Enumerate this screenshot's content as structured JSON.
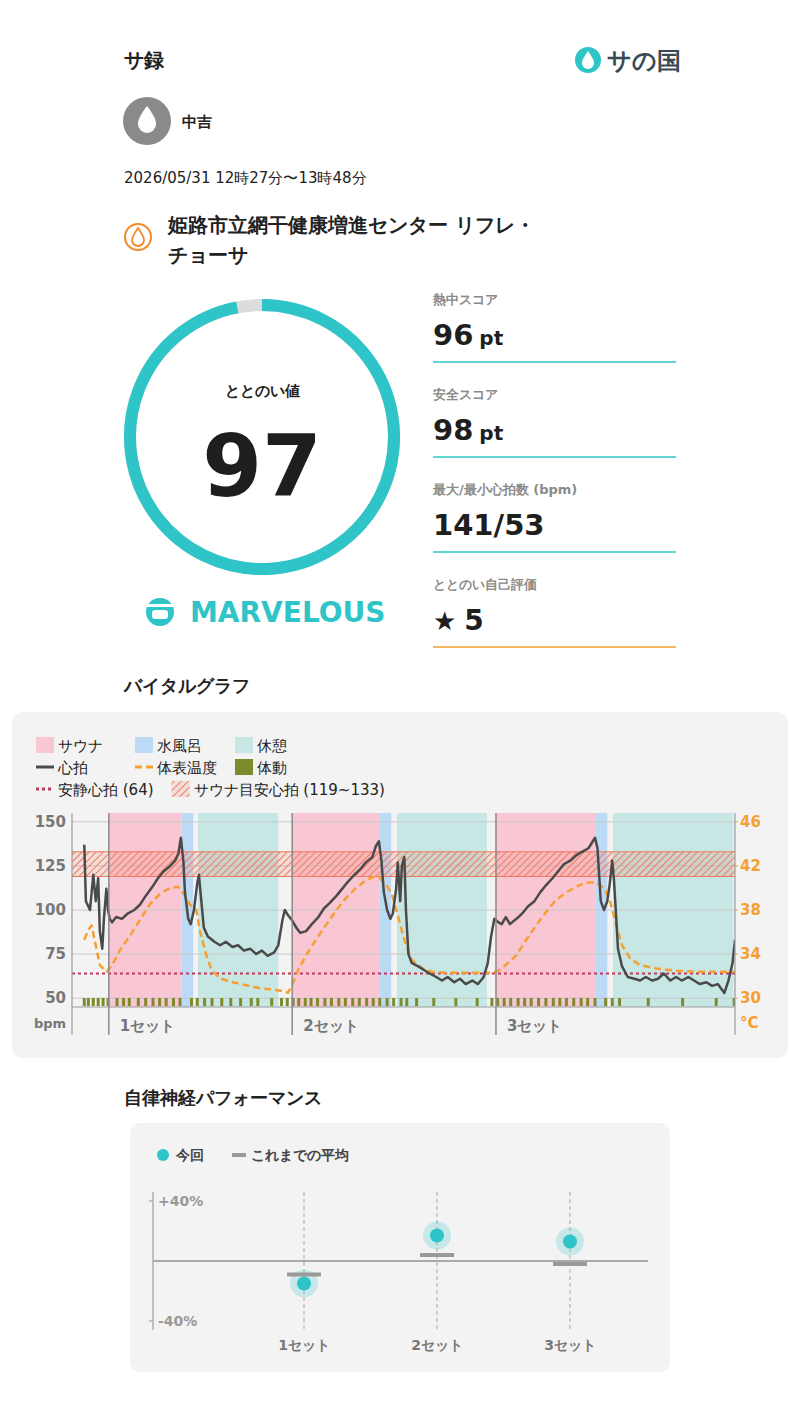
{
  "header": {
    "title": "サ録",
    "brand": "サの国",
    "user": "中吉",
    "datetime": "2026/05/31 12時27分〜13時48分",
    "facility": "姫路市立網干健康増進センター リフレ・チョーサ"
  },
  "score": {
    "label": "ととのい値",
    "value": 97,
    "range": [
      0,
      100
    ],
    "rank": "MARVELOUS",
    "color": "#2ec4c8"
  },
  "stats": [
    {
      "label": "熱中スコア",
      "value": 96,
      "unit": "pt"
    },
    {
      "label": "安全スコア",
      "value": 98,
      "unit": "pt"
    },
    {
      "label": "最大/最小心拍数 (bpm)",
      "value": "141/53"
    },
    {
      "label": "ととのい自己評価",
      "value": 5,
      "icon": "★"
    }
  ],
  "chart_data": [
    {
      "type": "line",
      "title": "バイタルグラフ",
      "y_label": "bpm",
      "y2_label": "°C",
      "xlim": [
        0,
        81
      ],
      "xticks": [
        {
          "value": 4.5,
          "label": "1セット"
        },
        {
          "value": 26.9,
          "label": "2セット"
        },
        {
          "value": 51.8,
          "label": "3セット"
        }
      ],
      "ylim": [
        45,
        155
      ],
      "yticks": [
        50,
        75,
        100,
        125,
        150
      ],
      "y2lim": [
        29.2,
        46.8
      ],
      "y2ticks": [
        30,
        34,
        38,
        42,
        46
      ],
      "grid": true,
      "legend": "top-left",
      "phases": [
        {
          "name": "サウナ",
          "color": "#f9c6d3",
          "intervals": [
            [
              4.5,
              13.4
            ],
            [
              26.9,
              37.6
            ],
            [
              51.8,
              64.0
            ]
          ]
        },
        {
          "name": "水風呂",
          "color": "#bcdaf5",
          "intervals": [
            [
              13.4,
              14.8
            ],
            [
              37.6,
              39.0
            ],
            [
              64.0,
              65.4
            ]
          ]
        },
        {
          "name": "休憩",
          "color": "#c6e7e4",
          "intervals": [
            [
              15.4,
              25.2
            ],
            [
              39.7,
              50.7
            ],
            [
              66.1,
              80.8
            ]
          ]
        }
      ],
      "series": [
        {
          "name": "心拍",
          "color": "#4a4a4a",
          "line_style": "solid",
          "x": [
            1.5,
            1.7,
            2.2,
            2.6,
            2.9,
            3.2,
            3.4,
            3.7,
            3.9,
            4.2,
            4.4,
            4.6,
            4.9,
            5.4,
            6.1,
            6.8,
            7.6,
            8.3,
            9.0,
            9.8,
            10.5,
            11.2,
            12.0,
            12.6,
            13.0,
            13.3,
            13.6,
            13.8,
            14.2,
            14.5,
            14.9,
            15.3,
            15.5,
            15.8,
            16.1,
            16.6,
            17.4,
            18.1,
            18.8,
            19.6,
            20.3,
            21.0,
            21.8,
            22.5,
            23.2,
            23.9,
            24.7,
            25.2,
            25.7,
            26.0,
            26.4,
            26.9,
            27.4,
            27.9,
            28.6,
            29.3,
            30.1,
            30.8,
            31.5,
            32.3,
            33.0,
            33.7,
            34.5,
            35.2,
            35.9,
            36.7,
            37.1,
            37.5,
            37.8,
            38.1,
            38.5,
            38.9,
            39.2,
            39.6,
            39.8,
            40.1,
            40.3,
            40.6,
            40.8,
            41.1,
            41.5,
            42.3,
            43.0,
            43.7,
            44.5,
            45.2,
            45.9,
            46.7,
            47.4,
            48.1,
            48.9,
            49.6,
            50.3,
            50.8,
            51.2,
            51.6,
            52.1,
            52.5,
            53.0,
            53.5,
            54.3,
            55.0,
            55.7,
            56.5,
            57.2,
            57.9,
            58.7,
            59.4,
            60.1,
            60.9,
            61.6,
            62.3,
            63.1,
            63.5,
            63.9,
            64.2,
            64.4,
            64.6,
            65.0,
            65.4,
            65.7,
            66.0,
            66.2,
            66.5,
            66.7,
            67.2,
            67.9,
            68.7,
            69.4,
            70.1,
            70.9,
            71.6,
            72.3,
            73.1,
            73.8,
            74.5,
            75.3,
            76.0,
            76.7,
            77.5,
            78.2,
            78.9,
            79.7,
            80.2,
            80.7,
            81.0
          ],
          "values": [
            137,
            105,
            100,
            120,
            105,
            118,
            88,
            78,
            95,
            112,
            100,
            95,
            93,
            96,
            95,
            98,
            100,
            103,
            108,
            113,
            118,
            122,
            125,
            128,
            132,
            141,
            128,
            110,
            95,
            92,
            100,
            115,
            120,
            105,
            90,
            85,
            82,
            80,
            82,
            79,
            80,
            77,
            78,
            75,
            77,
            74,
            76,
            80,
            94,
            100,
            97,
            94,
            90,
            87,
            88,
            92,
            96,
            101,
            104,
            108,
            112,
            116,
            120,
            123,
            127,
            130,
            136,
            139,
            128,
            110,
            100,
            95,
            98,
            112,
            127,
            105,
            125,
            130,
            100,
            75,
            70,
            68,
            66,
            64,
            62,
            60,
            62,
            59,
            61,
            58,
            60,
            58,
            62,
            70,
            85,
            95,
            93,
            92,
            96,
            92,
            95,
            98,
            102,
            105,
            110,
            114,
            118,
            122,
            126,
            128,
            131,
            133,
            135,
            138,
            141,
            135,
            120,
            105,
            100,
            105,
            115,
            128,
            118,
            95,
            78,
            68,
            62,
            61,
            60,
            62,
            60,
            61,
            64,
            60,
            62,
            60,
            62,
            60,
            58,
            59,
            57,
            58,
            53,
            60,
            70,
            83
          ]
        },
        {
          "name": "体表温度",
          "color": "#f5a031",
          "line_style": "dashed",
          "axis": "y2",
          "x": [
            1.5,
            2.0,
            2.4,
            2.9,
            3.4,
            4.2,
            4.9,
            5.9,
            7.1,
            8.3,
            9.5,
            10.8,
            12.0,
            13.0,
            13.7,
            14.4,
            15.2,
            15.6,
            16.4,
            17.1,
            18.1,
            19.3,
            20.5,
            21.8,
            23.0,
            24.2,
            25.4,
            26.4,
            26.9,
            27.6,
            28.6,
            29.8,
            31.0,
            32.3,
            33.5,
            34.7,
            35.9,
            36.9,
            37.6,
            38.4,
            39.1,
            39.8,
            40.6,
            41.5,
            42.8,
            44.0,
            45.7,
            47.4,
            49.4,
            51.1,
            52.1,
            53.0,
            54.3,
            55.5,
            56.7,
            57.9,
            59.1,
            60.4,
            61.6,
            62.8,
            64.0,
            65.0,
            65.7,
            66.5,
            67.2,
            68.2,
            69.4,
            71.4,
            73.8,
            76.7,
            79.2,
            81.0
          ],
          "values": [
            35.3,
            36.2,
            36.6,
            34.8,
            33.0,
            32.4,
            33.0,
            34.4,
            35.7,
            37.1,
            38.5,
            39.5,
            40.0,
            40.1,
            39.4,
            38.5,
            38.0,
            36.2,
            33.9,
            32.5,
            31.8,
            31.5,
            31.3,
            31.1,
            30.9,
            30.8,
            30.7,
            30.5,
            31.2,
            32.5,
            33.9,
            35.3,
            36.6,
            38.0,
            39.1,
            40.0,
            40.7,
            41.0,
            40.9,
            40.3,
            39.4,
            37.5,
            35.3,
            33.5,
            32.7,
            32.4,
            32.3,
            32.3,
            32.3,
            32.3,
            32.5,
            33.0,
            33.9,
            35.3,
            36.6,
            37.8,
            38.9,
            39.6,
            40.1,
            40.5,
            40.5,
            40.0,
            38.9,
            36.6,
            34.8,
            33.6,
            33.0,
            32.7,
            32.5,
            32.4,
            32.4,
            32.4
          ]
        }
      ],
      "movement": {
        "name": "体動",
        "color": "#7d8b2c",
        "x": [
          1.5,
          2.0,
          2.6,
          3.2,
          3.8,
          4.4,
          5.5,
          6.3,
          7.0,
          8.1,
          9.0,
          9.9,
          10.7,
          11.5,
          12.4,
          13.2,
          14.6,
          15.3,
          16.2,
          17.1,
          18.3,
          19.4,
          20.6,
          21.9,
          22.7,
          24.4,
          25.6,
          26.3,
          27.0,
          27.7,
          28.5,
          29.2,
          30.0,
          30.9,
          31.7,
          32.6,
          33.4,
          34.3,
          35.1,
          36.0,
          36.8,
          37.6,
          38.5,
          39.3,
          40.2,
          40.9,
          42.1,
          44.2,
          46.9,
          49.5,
          51.3,
          52.0,
          52.8,
          53.6,
          54.5,
          55.3,
          56.1,
          57.0,
          57.9,
          58.8,
          59.6,
          60.4,
          61.3,
          62.2,
          63.0,
          63.9,
          65.2,
          66.0,
          66.9,
          70.4,
          74.6,
          78.7,
          80.9
        ]
      },
      "reference_lines": [
        {
          "name": "安静心拍 (64)",
          "value": 64,
          "color": "#c0395a",
          "line_style": "dotted"
        }
      ],
      "bands": [
        {
          "name": "サウナ目安心拍 (119~133)",
          "range": [
            119,
            133
          ],
          "color": "#ef7a5e"
        }
      ]
    },
    {
      "type": "scatter",
      "title": "自律神経パフォーマンス",
      "categories": [
        "1セット",
        "2セット",
        "3セット"
      ],
      "ylim": [
        -46,
        46
      ],
      "yticks": [
        {
          "value": 40,
          "label": "+40%"
        },
        {
          "value": -40,
          "label": "-40%"
        }
      ],
      "zero_line": 0,
      "legend": "top-left",
      "series": [
        {
          "name": "今回",
          "color": "#2ec4c8",
          "marker": "circle",
          "values": [
            -15,
            17,
            13
          ]
        },
        {
          "name": "これまでの平均",
          "color": "#9a9a9a",
          "marker": "dash",
          "values": [
            -9,
            4,
            -2
          ]
        }
      ]
    }
  ]
}
